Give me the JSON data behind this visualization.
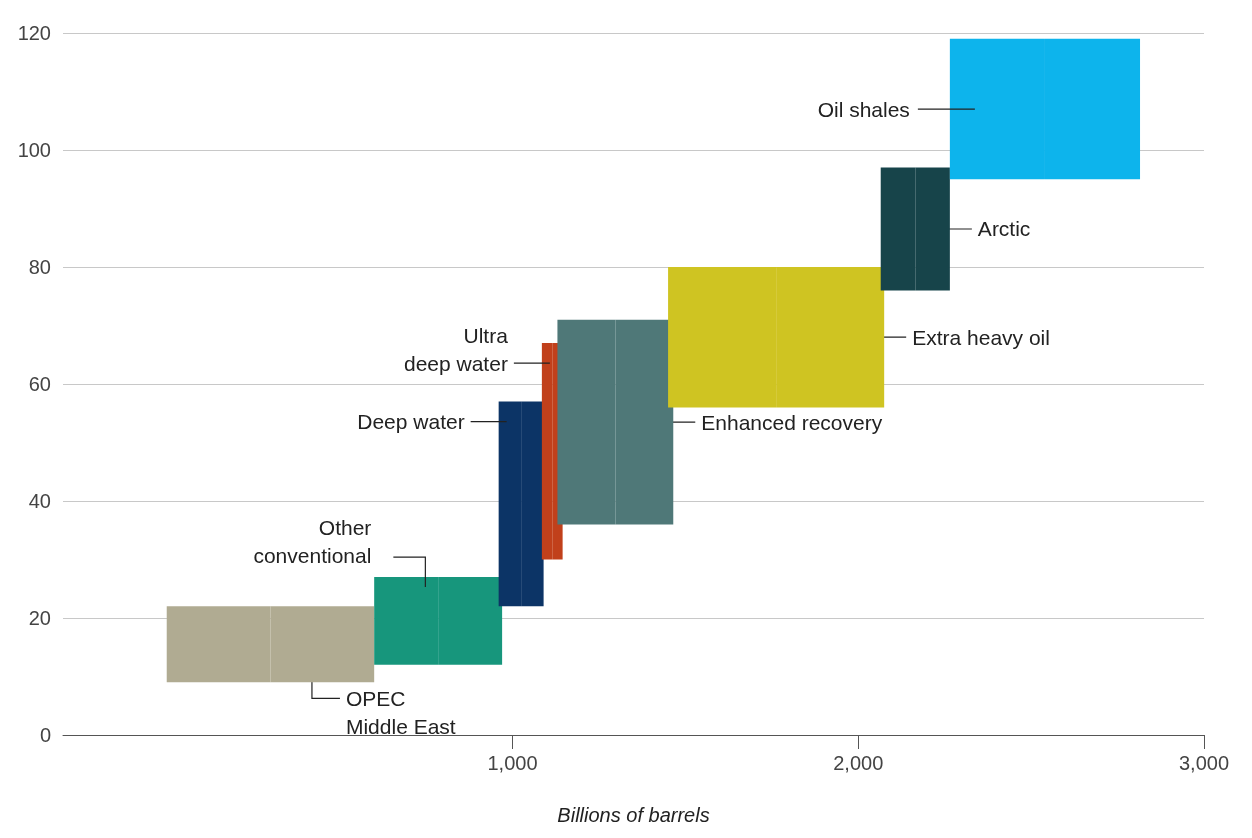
{
  "chart_data": {
    "type": "bar",
    "xlabel": "Billions of barrels",
    "xlim": [
      -300,
      3000
    ],
    "xticks": [
      {
        "value": 1000,
        "label": "1,000"
      },
      {
        "value": 2000,
        "label": "2,000"
      },
      {
        "value": 3000,
        "label": "3,000"
      }
    ],
    "ylim": [
      0,
      120
    ],
    "yticks": [
      0,
      20,
      40,
      60,
      80,
      100,
      120
    ],
    "grid": "y",
    "series": [
      {
        "name": "OPEC\nMiddle East",
        "color": "#b0ab92",
        "x": [
          0,
          600
        ],
        "base": [
          9,
          9
        ],
        "values": [
          13,
          13
        ]
      },
      {
        "name": "Other\nconventional",
        "color": "#17967c",
        "x": [
          600,
          970
        ],
        "base": [
          12,
          12
        ],
        "values": [
          15,
          15
        ]
      },
      {
        "name": "Deep water",
        "color": "#0c3466",
        "x": [
          960,
          1090
        ],
        "base": [
          22,
          22
        ],
        "values": [
          35,
          35
        ]
      },
      {
        "name": "Ultra\ndeep water",
        "color": "#c1401b",
        "x": [
          1085,
          1145
        ],
        "base": [
          30,
          30
        ],
        "values": [
          37,
          37
        ]
      },
      {
        "name": "Enhanced recovery",
        "color": "#4f7878",
        "x": [
          1130,
          1465
        ],
        "base": [
          36,
          36
        ],
        "values": [
          35,
          35
        ]
      },
      {
        "name": "Extra heavy oil",
        "color": "#cfc422",
        "x": [
          1450,
          2075
        ],
        "base": [
          56,
          56
        ],
        "values": [
          24,
          24
        ]
      },
      {
        "name": "Arctic",
        "color": "#17444a",
        "x": [
          2065,
          2265
        ],
        "base": [
          76,
          76
        ],
        "values": [
          21,
          21
        ]
      },
      {
        "name": "Oil shales",
        "color": "#0db4ec",
        "x": [
          2265,
          2815
        ],
        "base": [
          95,
          95
        ],
        "values": [
          24,
          24
        ]
      }
    ]
  }
}
